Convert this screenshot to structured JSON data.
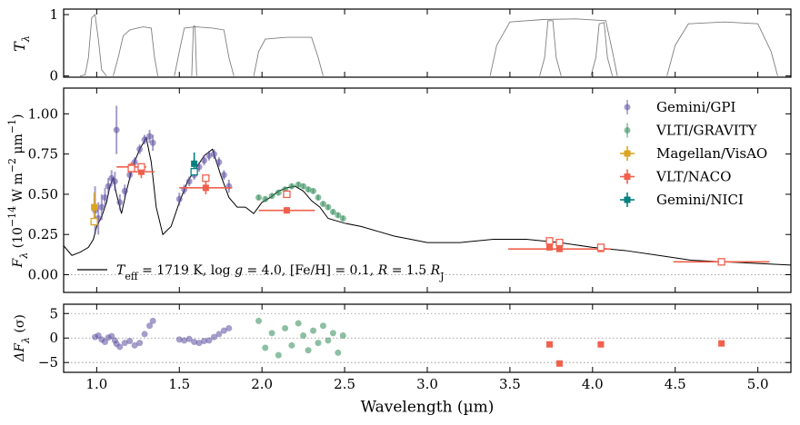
{
  "chart_data": [
    {
      "type": "line",
      "ylabel": [
        "T",
        "λ"
      ],
      "ylim": [
        -0.02,
        1.09
      ],
      "yticks": [
        0,
        1
      ],
      "series": [
        {
          "color": "#808080",
          "x": [
            0.9,
            0.93,
            0.95,
            0.97,
            0.99,
            1.01,
            1.03,
            1.06
          ],
          "values": [
            0,
            0.02,
            0.3,
            0.95,
            1.0,
            0.6,
            0.1,
            0
          ]
        },
        {
          "color": "#808080",
          "x": [
            1.1,
            1.13,
            1.16,
            1.2,
            1.28,
            1.33,
            1.35,
            1.37
          ],
          "values": [
            0,
            0.3,
            0.65,
            0.75,
            0.8,
            0.78,
            0.3,
            0
          ]
        },
        {
          "color": "#808080",
          "x": [
            1.47,
            1.5,
            1.53,
            1.6,
            1.7,
            1.77,
            1.8,
            1.83
          ],
          "values": [
            0,
            0.4,
            0.78,
            0.8,
            0.78,
            0.75,
            0.3,
            0
          ]
        },
        {
          "color": "#808080",
          "x": [
            1.575,
            1.585,
            1.59,
            1.595,
            1.605
          ],
          "values": [
            0,
            0.8,
            0.82,
            0.8,
            0
          ]
        },
        {
          "color": "#808080",
          "x": [
            1.95,
            1.98,
            2.02,
            2.15,
            2.3,
            2.34,
            2.37
          ],
          "values": [
            0,
            0.4,
            0.6,
            0.63,
            0.63,
            0.3,
            0
          ]
        },
        {
          "color": "#808080",
          "x": [
            3.38,
            3.42,
            3.5,
            3.7,
            3.9,
            4.08,
            4.12,
            4.15
          ],
          "values": [
            0,
            0.5,
            0.88,
            0.92,
            0.93,
            0.9,
            0.4,
            0
          ]
        },
        {
          "color": "#808080",
          "x": [
            3.68,
            3.71,
            3.73,
            3.76,
            3.78,
            3.81
          ],
          "values": [
            0,
            0.3,
            0.9,
            0.9,
            0.3,
            0
          ]
        },
        {
          "color": "#808080",
          "x": [
            3.99,
            4.02,
            4.04,
            4.07,
            4.09,
            4.12
          ],
          "values": [
            0,
            0.3,
            0.85,
            0.87,
            0.3,
            0
          ]
        },
        {
          "color": "#808080",
          "x": [
            4.45,
            4.5,
            4.58,
            4.8,
            5.0,
            5.08,
            5.12
          ],
          "values": [
            0,
            0.5,
            0.85,
            0.88,
            0.85,
            0.4,
            0
          ]
        }
      ]
    },
    {
      "type": "errorbar",
      "ylabel": [
        "F",
        "λ",
        " (10",
        "−14",
        " W m",
        "−2",
        " μm",
        "−1",
        ")"
      ],
      "ylim": [
        -0.11,
        1.16
      ],
      "yticks": [
        {
          "value": 0,
          "label": "0.00"
        },
        {
          "value": 0.25,
          "label": "0.25"
        },
        {
          "value": 0.5,
          "label": "0.50"
        },
        {
          "value": 0.75,
          "label": "0.75"
        },
        {
          "value": 1,
          "label": "1.00"
        }
      ],
      "zero_line": true,
      "legend": "upper right",
      "annotation": [
        "T",
        "eff",
        " = 1719 K, log ",
        "g",
        " = 4.0, [Fe/H] = 0.1, ",
        "R",
        " = 1.5 ",
        "R",
        "J"
      ],
      "model": {
        "color": "#000000",
        "x": [
          0.8,
          0.85,
          0.9,
          0.95,
          0.98,
          1.0,
          1.03,
          1.06,
          1.08,
          1.1,
          1.12,
          1.15,
          1.18,
          1.22,
          1.26,
          1.3,
          1.33,
          1.36,
          1.4,
          1.45,
          1.5,
          1.55,
          1.6,
          1.65,
          1.7,
          1.75,
          1.8,
          1.85,
          1.9,
          1.95,
          2.0,
          2.05,
          2.1,
          2.15,
          2.2,
          2.25,
          2.3,
          2.35,
          2.4,
          2.5,
          2.6,
          2.7,
          2.8,
          2.9,
          3.0,
          3.2,
          3.4,
          3.6,
          3.8,
          4.0,
          4.2,
          4.4,
          4.6,
          4.8,
          5.0,
          5.2
        ],
        "values": [
          0.18,
          0.12,
          0.14,
          0.17,
          0.22,
          0.3,
          0.36,
          0.45,
          0.55,
          0.6,
          0.5,
          0.38,
          0.52,
          0.68,
          0.78,
          0.85,
          0.7,
          0.42,
          0.25,
          0.3,
          0.45,
          0.58,
          0.66,
          0.74,
          0.78,
          0.62,
          0.48,
          0.42,
          0.42,
          0.38,
          0.45,
          0.48,
          0.52,
          0.54,
          0.55,
          0.52,
          0.46,
          0.42,
          0.35,
          0.32,
          0.3,
          0.27,
          0.24,
          0.22,
          0.2,
          0.2,
          0.22,
          0.22,
          0.2,
          0.17,
          0.15,
          0.12,
          0.09,
          0.08,
          0.07,
          0.06
        ]
      },
      "series": [
        {
          "name": "Gemini/GPI",
          "color": "#5b4d9e",
          "marker": "circle",
          "x": [
            0.99,
            1.01,
            1.03,
            1.05,
            1.07,
            1.09,
            1.11,
            1.12,
            1.14,
            1.17,
            1.2,
            1.23,
            1.26,
            1.29,
            1.32,
            1.34,
            1.5,
            1.53,
            1.56,
            1.59,
            1.62,
            1.65,
            1.68,
            1.71,
            1.74,
            1.77,
            1.8
          ],
          "values": [
            0.4,
            0.35,
            0.42,
            0.48,
            0.55,
            0.6,
            0.58,
            0.9,
            0.45,
            0.52,
            0.62,
            0.7,
            0.78,
            0.84,
            0.86,
            0.82,
            0.47,
            0.53,
            0.58,
            0.62,
            0.67,
            0.71,
            0.74,
            0.75,
            0.7,
            0.62,
            0.55
          ],
          "errors": [
            0.15,
            0.1,
            0.08,
            0.06,
            0.05,
            0.05,
            0.06,
            0.15,
            0.05,
            0.04,
            0.03,
            0.03,
            0.03,
            0.03,
            0.04,
            0.05,
            0.04,
            0.03,
            0.03,
            0.03,
            0.03,
            0.03,
            0.03,
            0.03,
            0.03,
            0.03,
            0.04
          ]
        },
        {
          "name": "VLTI/GRAVITY",
          "color": "#2e8b57",
          "marker": "circle",
          "x": [
            1.98,
            2.02,
            2.06,
            2.1,
            2.14,
            2.18,
            2.22,
            2.25,
            2.28,
            2.31,
            2.34,
            2.37,
            2.4,
            2.43,
            2.46,
            2.49
          ],
          "values": [
            0.48,
            0.47,
            0.49,
            0.51,
            0.53,
            0.55,
            0.56,
            0.55,
            0.53,
            0.52,
            0.48,
            0.44,
            0.42,
            0.39,
            0.37,
            0.35
          ],
          "errors": [
            0.015,
            0.015,
            0.015,
            0.015,
            0.015,
            0.015,
            0.015,
            0.015,
            0.015,
            0.015,
            0.015,
            0.015,
            0.015,
            0.015,
            0.015,
            0.015
          ]
        },
        {
          "name": "Magellan/VisAO",
          "color": "#daa520",
          "marker": "square",
          "x": [
            0.985
          ],
          "values": [
            0.42
          ],
          "errors": [
            0.09
          ],
          "xerr": [
            0.02
          ],
          "model_values": [
            0.33
          ]
        },
        {
          "name": "VLT/NACO",
          "color": "#f0604d",
          "marker": "square",
          "x": [
            1.21,
            1.27,
            1.66,
            2.15,
            3.74,
            3.8,
            4.05,
            4.78
          ],
          "values": [
            0.67,
            0.64,
            0.54,
            0.4,
            0.17,
            0.16,
            0.16,
            0.08
          ],
          "errors": [
            0.03,
            0.04,
            0.04,
            0.02,
            0.02,
            0.01,
            0.01,
            0.01
          ],
          "xerr": [
            0.09,
            0.08,
            0.16,
            0.17,
            0.02,
            0.31,
            0.03,
            0.29
          ],
          "model_values": [
            0.66,
            0.67,
            0.6,
            0.5,
            0.21,
            0.2,
            0.17,
            0.08
          ]
        },
        {
          "name": "Gemini/NICI",
          "color": "#008080",
          "marker": "square",
          "x": [
            1.59
          ],
          "values": [
            0.69
          ],
          "errors": [
            0.07
          ],
          "xerr": [
            0.01
          ],
          "model_values": [
            0.64
          ]
        }
      ]
    },
    {
      "type": "scatter",
      "ylabel": [
        "ΔF",
        "λ",
        " (σ)"
      ],
      "xlabel": "Wavelength (µm)",
      "xlim": [
        0.8,
        5.2
      ],
      "xticks": [
        {
          "value": 1,
          "label": "1.0"
        },
        {
          "value": 1.5,
          "label": "1.5"
        },
        {
          "value": 2,
          "label": "2.0"
        },
        {
          "value": 2.5,
          "label": "2.5"
        },
        {
          "value": 3,
          "label": "3.0"
        },
        {
          "value": 3.5,
          "label": "3.5"
        },
        {
          "value": 4,
          "label": "4.0"
        },
        {
          "value": 4.5,
          "label": "4.5"
        },
        {
          "value": 5,
          "label": "5.0"
        }
      ],
      "ylim": [
        -7,
        6.9
      ],
      "yticks": [
        {
          "value": -5,
          "label": "−5"
        },
        0,
        5
      ],
      "grid": true,
      "series": [
        {
          "color": "#5b4d9e",
          "marker": "circle",
          "x": [
            0.99,
            1.01,
            1.03,
            1.05,
            1.07,
            1.09,
            1.11,
            1.12,
            1.14,
            1.17,
            1.2,
            1.23,
            1.26,
            1.29,
            1.32,
            1.34,
            1.5,
            1.53,
            1.56,
            1.59,
            1.62,
            1.65,
            1.68,
            1.71,
            1.74,
            1.77,
            1.8
          ],
          "values": [
            0.2,
            0.5,
            -0.3,
            -0.8,
            0.1,
            0.4,
            -0.5,
            -1.2,
            -1.8,
            -1.0,
            -0.6,
            -1.5,
            -1.0,
            0.8,
            2.5,
            3.5,
            -0.3,
            -0.5,
            -0.2,
            -0.8,
            -1.0,
            -0.6,
            -0.5,
            0.2,
            0.8,
            1.5,
            2.0
          ]
        },
        {
          "color": "#2e8b57",
          "marker": "circle",
          "x": [
            1.98,
            2.02,
            2.06,
            2.1,
            2.14,
            2.18,
            2.22,
            2.25,
            2.28,
            2.31,
            2.34,
            2.37,
            2.4,
            2.43,
            2.46,
            2.49
          ],
          "values": [
            3.5,
            -2.0,
            1.0,
            -3.5,
            2.0,
            -1.5,
            3.0,
            0.5,
            -2.5,
            1.5,
            -1.0,
            2.5,
            -0.5,
            1.0,
            -3.0,
            0.5
          ]
        },
        {
          "color": "#f0604d",
          "marker": "square",
          "x": [
            3.74,
            3.8,
            4.05,
            4.78
          ],
          "values": [
            -1.3,
            -5.2,
            -1.3,
            -1.1
          ]
        }
      ]
    }
  ]
}
